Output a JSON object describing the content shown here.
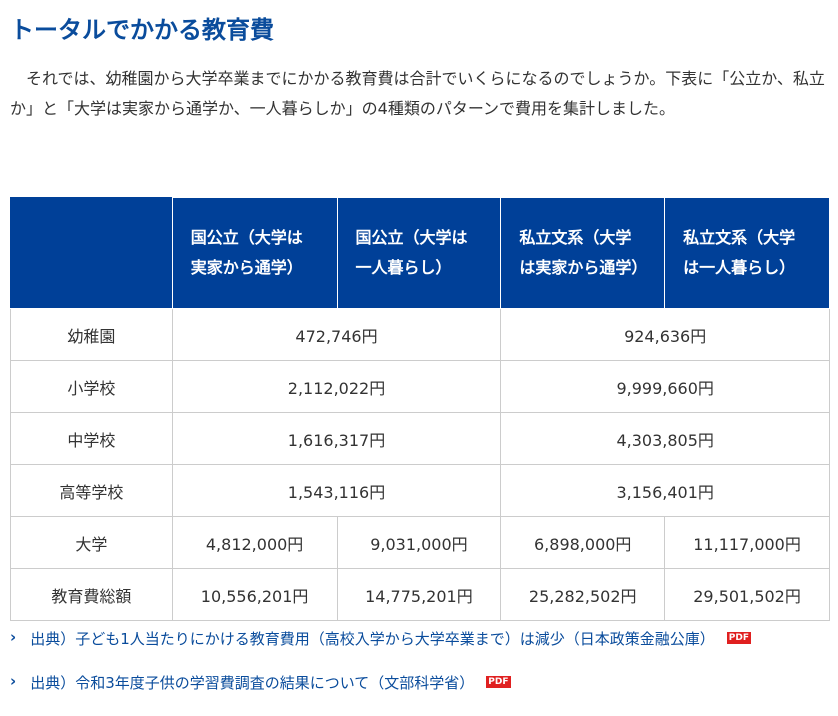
{
  "header": {
    "title": "トータルでかかる教育費"
  },
  "intro": "それでは、幼稚園から大学卒業までにかかる教育費は合計でいくらになるのでしょうか。下表に「公立か、私立か」と「大学は実家から通学か、一人暮らしか」の4種類のパターンで費用を集計しました。",
  "table": {
    "header": [
      "国公立（大学は実家から通学）",
      "国公立（大学は一人暮らし）",
      "私立文系（大学は実家から通学）",
      "私立文系（大学は一人暮らし）"
    ],
    "rows": [
      [
        "幼稚園",
        "472,746円",
        "924,636円"
      ],
      [
        "小学校",
        "2,112,022円",
        "9,999,660円"
      ],
      [
        "中学校",
        "1,616,317円",
        "4,303,805円"
      ],
      [
        "高等学校",
        "1,543,116円",
        "3,156,401円"
      ],
      [
        "大学",
        "4,812,000円",
        "9,031,000円",
        "6,898,000円",
        "11,117,000円"
      ],
      [
        "教育費総額",
        "10,556,201円",
        "14,775,201円",
        "25,282,502円",
        "29,501,502円"
      ]
    ]
  },
  "links": [
    {
      "text": "出典）子ども1人当たりにかける教育費用（高校入学から大学卒業まで）は減少（日本政策金融公庫）",
      "icon": "PDF"
    },
    {
      "text": "出典）令和3年度子供の学習費調査の結果について（文部科学省）",
      "icon": "PDF"
    }
  ]
}
